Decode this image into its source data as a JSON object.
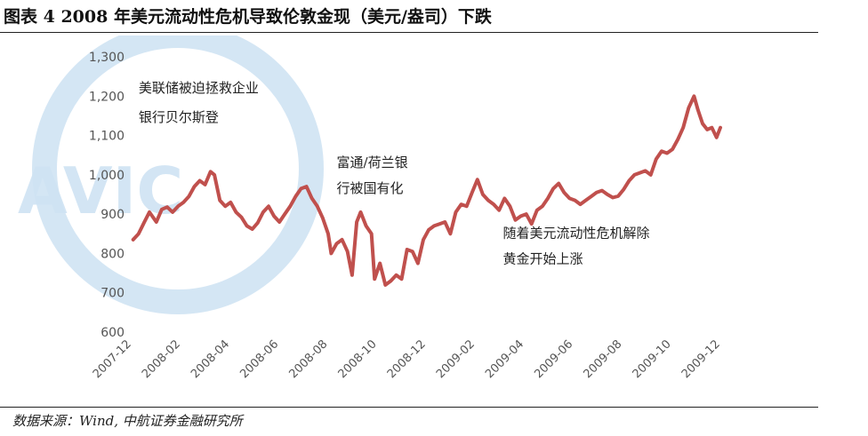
{
  "title": "图表 4 2008 年美元流动性危机导致伦敦金现（美元/盎司）下跌",
  "source": "数据来源：Wind, 中航证券金融研究所",
  "watermark": {
    "text": "AVIC",
    "color": "#cfe3f3"
  },
  "colors": {
    "line": "#c0504d",
    "text": "#222222",
    "axis": "#555555"
  },
  "chart_data": {
    "type": "line",
    "title": "",
    "xlabel": "",
    "ylabel": "",
    "ylim": [
      600,
      1300
    ],
    "yticks": [
      600,
      700,
      800,
      900,
      1000,
      1100,
      1200,
      1300
    ],
    "ytick_labels": [
      "600",
      "700",
      "800",
      "900",
      "1,000",
      "1,100",
      "1,200",
      "1,300"
    ],
    "xlim": [
      "2007-12-01",
      "2009-12-31"
    ],
    "xtick_labels": [
      "2007-12",
      "2008-02",
      "2008-04",
      "2008-06",
      "2008-08",
      "2008-10",
      "2008-12",
      "2009-02",
      "2009-04",
      "2009-06",
      "2009-08",
      "2009-10",
      "2009-12"
    ],
    "grid": false,
    "series": [
      {
        "x": [
          "2007-12-03",
          "2007-12-10",
          "2007-12-17",
          "2007-12-24",
          "2008-01-02",
          "2008-01-09",
          "2008-01-16",
          "2008-01-23",
          "2008-01-30",
          "2008-02-06",
          "2008-02-13",
          "2008-02-20",
          "2008-02-27",
          "2008-03-05",
          "2008-03-12",
          "2008-03-17",
          "2008-03-24",
          "2008-03-31",
          "2008-04-07",
          "2008-04-14",
          "2008-04-21",
          "2008-04-28",
          "2008-05-05",
          "2008-05-12",
          "2008-05-19",
          "2008-05-26",
          "2008-06-02",
          "2008-06-09",
          "2008-06-16",
          "2008-06-23",
          "2008-06-30",
          "2008-07-07",
          "2008-07-14",
          "2008-07-21",
          "2008-07-28",
          "2008-08-04",
          "2008-08-11",
          "2008-08-15",
          "2008-08-22",
          "2008-08-29",
          "2008-09-05",
          "2008-09-11",
          "2008-09-17",
          "2008-09-22",
          "2008-09-29",
          "2008-10-06",
          "2008-10-10",
          "2008-10-17",
          "2008-10-24",
          "2008-10-31",
          "2008-11-07",
          "2008-11-14",
          "2008-11-21",
          "2008-11-28",
          "2008-12-05",
          "2008-12-12",
          "2008-12-19",
          "2008-12-26",
          "2009-01-02",
          "2009-01-09",
          "2009-01-16",
          "2009-01-23",
          "2009-01-30",
          "2009-02-06",
          "2009-02-13",
          "2009-02-20",
          "2009-02-27",
          "2009-03-06",
          "2009-03-13",
          "2009-03-20",
          "2009-03-27",
          "2009-04-03",
          "2009-04-10",
          "2009-04-17",
          "2009-04-24",
          "2009-05-01",
          "2009-05-08",
          "2009-05-15",
          "2009-05-22",
          "2009-05-29",
          "2009-06-05",
          "2009-06-12",
          "2009-06-19",
          "2009-06-26",
          "2009-07-03",
          "2009-07-10",
          "2009-07-17",
          "2009-07-24",
          "2009-07-31",
          "2009-08-07",
          "2009-08-14",
          "2009-08-21",
          "2009-08-28",
          "2009-09-04",
          "2009-09-11",
          "2009-09-18",
          "2009-09-25",
          "2009-10-02",
          "2009-10-09",
          "2009-10-16",
          "2009-10-23",
          "2009-10-30",
          "2009-11-06",
          "2009-11-13",
          "2009-11-20",
          "2009-11-27",
          "2009-12-02",
          "2009-12-08",
          "2009-12-14",
          "2009-12-20",
          "2009-12-26",
          "2009-12-31"
        ],
        "values": [
          835,
          850,
          878,
          905,
          880,
          912,
          918,
          905,
          920,
          930,
          945,
          970,
          985,
          975,
          1008,
          1000,
          935,
          920,
          930,
          905,
          892,
          870,
          862,
          878,
          905,
          920,
          895,
          880,
          900,
          920,
          945,
          965,
          970,
          940,
          920,
          890,
          850,
          800,
          825,
          835,
          805,
          745,
          880,
          905,
          870,
          850,
          735,
          775,
          720,
          730,
          745,
          735,
          810,
          805,
          775,
          835,
          860,
          870,
          875,
          880,
          850,
          905,
          925,
          920,
          955,
          988,
          950,
          935,
          925,
          910,
          940,
          920,
          885,
          895,
          900,
          875,
          910,
          920,
          940,
          965,
          978,
          955,
          940,
          935,
          925,
          935,
          945,
          955,
          960,
          950,
          942,
          946,
          963,
          985,
          1000,
          1005,
          1010,
          1000,
          1040,
          1060,
          1055,
          1065,
          1090,
          1120,
          1170,
          1200,
          1165,
          1130,
          1115,
          1120,
          1095,
          1120
        ]
      }
    ],
    "annotations": [
      {
        "lines": [
          "美联储被迫拯救企业",
          "银行贝尔斯登"
        ],
        "at_x": "2007-12-10",
        "at_y": [
          1210,
          1135
        ]
      },
      {
        "lines": [
          "富通/荷兰银",
          "行被国有化"
        ],
        "at_x": "2008-08-22",
        "at_y": [
          1020,
          955
        ]
      },
      {
        "lines": [
          "随着美元流动性危机解除",
          "黄金开始上涨"
        ],
        "at_x": "2009-03-25",
        "at_y": [
          840,
          775
        ]
      }
    ]
  }
}
